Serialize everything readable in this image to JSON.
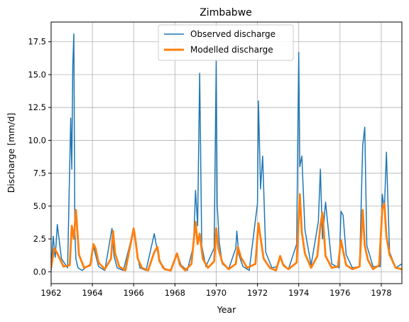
{
  "chart_data": {
    "type": "line",
    "title": "Zimbabwe",
    "xlabel": "Year",
    "ylabel": "Discharge [mm/d]",
    "xlim": [
      1962,
      1979
    ],
    "ylim": [
      -0.9,
      19.0
    ],
    "x_ticks": [
      1962,
      1964,
      1966,
      1968,
      1970,
      1972,
      1974,
      1976,
      1978
    ],
    "y_ticks": [
      0.0,
      2.5,
      5.0,
      7.5,
      10.0,
      12.5,
      15.0,
      17.5
    ],
    "x_tick_labels": [
      "1962",
      "1964",
      "1966",
      "1968",
      "1970",
      "1972",
      "1974",
      "1976",
      "1978"
    ],
    "y_tick_labels": [
      "0.0",
      "2.5",
      "5.0",
      "7.5",
      "10.0",
      "12.5",
      "15.0",
      "17.5"
    ],
    "grid": true,
    "legend_position": "top-center",
    "series": [
      {
        "name": "Observed discharge",
        "color": "#1f77b4",
        "x": [
          1962.0,
          1962.1,
          1962.2,
          1962.3,
          1962.5,
          1962.8,
          1962.95,
          1963.0,
          1963.05,
          1963.1,
          1963.15,
          1963.2,
          1963.3,
          1963.5,
          1963.9,
          1964.05,
          1964.15,
          1964.3,
          1964.6,
          1964.95,
          1965.05,
          1965.2,
          1965.5,
          1966.0,
          1966.15,
          1966.3,
          1966.6,
          1967.0,
          1967.1,
          1967.2,
          1967.4,
          1967.8,
          1968.0,
          1968.1,
          1968.3,
          1968.6,
          1968.9,
          1969.0,
          1969.1,
          1969.2,
          1969.3,
          1969.5,
          1969.9,
          1970.0,
          1970.05,
          1970.15,
          1970.3,
          1970.6,
          1970.95,
          1971.0,
          1971.1,
          1971.3,
          1971.6,
          1972.0,
          1972.05,
          1972.15,
          1972.25,
          1972.4,
          1972.7,
          1972.95,
          1973.1,
          1973.25,
          1973.5,
          1973.9,
          1974.0,
          1974.05,
          1974.15,
          1974.3,
          1974.6,
          1974.95,
          1975.05,
          1975.15,
          1975.3,
          1975.6,
          1975.95,
          1976.05,
          1976.15,
          1976.3,
          1976.6,
          1976.95,
          1977.1,
          1977.2,
          1977.3,
          1977.6,
          1977.95,
          1978.05,
          1978.15,
          1978.25,
          1978.4,
          1978.7,
          1979.0
        ],
        "y": [
          0.1,
          2.7,
          1.1,
          3.6,
          1.0,
          0.3,
          11.7,
          7.8,
          15.7,
          18.1,
          3.1,
          1.0,
          0.3,
          0.1,
          0.6,
          2.0,
          1.3,
          0.4,
          0.1,
          3.3,
          1.2,
          0.3,
          0.1,
          3.2,
          1.5,
          0.3,
          0.1,
          2.9,
          2.0,
          1.2,
          0.3,
          0.1,
          0.9,
          1.4,
          0.5,
          0.1,
          2.0,
          6.2,
          3.5,
          15.1,
          2.0,
          0.4,
          1.8,
          16.1,
          5.1,
          2.2,
          0.6,
          0.2,
          1.8,
          3.1,
          1.3,
          0.4,
          0.1,
          5.2,
          13.0,
          6.3,
          8.8,
          1.5,
          0.3,
          0.4,
          1.1,
          0.6,
          0.2,
          2.1,
          16.7,
          8.0,
          8.8,
          3.2,
          0.5,
          3.8,
          7.8,
          2.5,
          5.3,
          0.6,
          0.3,
          4.6,
          4.3,
          1.3,
          0.3,
          0.4,
          9.6,
          11.0,
          2.0,
          0.4,
          0.4,
          5.9,
          4.7,
          9.1,
          1.5,
          0.3,
          0.6
        ]
      },
      {
        "name": "Modelled discharge",
        "color": "#ff7f0e",
        "x": [
          1962.0,
          1962.15,
          1962.3,
          1962.6,
          1962.9,
          1963.0,
          1963.1,
          1963.2,
          1963.35,
          1963.6,
          1963.9,
          1964.05,
          1964.15,
          1964.3,
          1964.6,
          1964.9,
          1965.0,
          1965.1,
          1965.3,
          1965.6,
          1966.0,
          1966.1,
          1966.2,
          1966.4,
          1966.7,
          1967.0,
          1967.15,
          1967.25,
          1967.5,
          1967.8,
          1968.1,
          1968.25,
          1968.5,
          1968.8,
          1969.0,
          1969.1,
          1969.2,
          1969.35,
          1969.6,
          1969.9,
          1970.0,
          1970.1,
          1970.3,
          1970.6,
          1970.95,
          1971.05,
          1971.2,
          1971.5,
          1971.9,
          1972.05,
          1972.15,
          1972.3,
          1972.6,
          1972.9,
          1973.1,
          1973.25,
          1973.5,
          1973.9,
          1974.05,
          1974.15,
          1974.3,
          1974.6,
          1974.9,
          1975.05,
          1975.15,
          1975.3,
          1975.6,
          1975.9,
          1976.05,
          1976.15,
          1976.3,
          1976.6,
          1976.95,
          1977.1,
          1977.2,
          1977.35,
          1977.6,
          1977.9,
          1978.05,
          1978.15,
          1978.25,
          1978.4,
          1978.7,
          1979.0
        ],
        "y": [
          0.3,
          1.8,
          1.4,
          0.4,
          0.5,
          3.5,
          2.5,
          4.7,
          1.3,
          0.3,
          0.5,
          2.1,
          1.8,
          0.7,
          0.2,
          1.0,
          3.1,
          1.4,
          0.4,
          0.1,
          3.3,
          2.3,
          1.0,
          0.3,
          0.1,
          1.5,
          1.9,
          0.8,
          0.2,
          0.1,
          1.4,
          0.5,
          0.1,
          0.6,
          3.8,
          2.1,
          2.9,
          1.0,
          0.3,
          0.8,
          3.3,
          1.8,
          0.7,
          0.2,
          0.6,
          1.9,
          1.1,
          0.3,
          0.6,
          3.7,
          2.6,
          1.0,
          0.3,
          0.1,
          1.2,
          0.5,
          0.2,
          0.7,
          5.9,
          3.0,
          1.4,
          0.3,
          1.2,
          3.5,
          4.5,
          1.2,
          0.3,
          0.4,
          2.4,
          1.6,
          0.5,
          0.2,
          0.4,
          4.7,
          2.0,
          0.9,
          0.2,
          0.5,
          4.8,
          5.2,
          2.7,
          1.3,
          0.3,
          0.2
        ]
      }
    ]
  }
}
